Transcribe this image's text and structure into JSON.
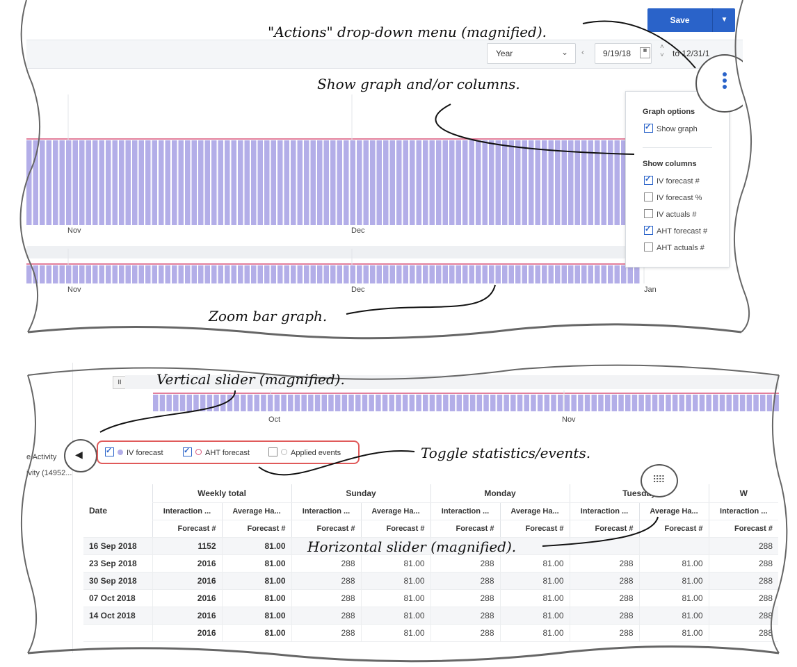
{
  "callouts": {
    "actions_menu": "\"Actions\" drop-down menu (magnified).",
    "show_graph_columns": "Show graph and/or columns.",
    "zoom_bar": "Zoom bar graph.",
    "vertical_slider": "Vertical slider (magnified).",
    "toggle_stats": "Toggle statistics/events.",
    "horizontal_slider": "Horizontal slider (magnified)."
  },
  "toolbar": {
    "save_label": "Save",
    "period_value": "Year",
    "start_date": "9/19/18",
    "to_label": "to 12/31/1"
  },
  "chart": {
    "bar_color": "#b3aee8",
    "line_color": "#d9547a",
    "month_labels": [
      "Nov",
      "Dec"
    ],
    "zoom_month_labels": [
      "Nov",
      "Dec",
      "Jan"
    ]
  },
  "graph_menu": {
    "graph_options_header": "Graph options",
    "show_graph_label": "Show graph",
    "show_graph_checked": true,
    "show_columns_header": "Show columns",
    "columns": [
      {
        "label": "IV forecast #",
        "checked": true
      },
      {
        "label": "IV forecast %",
        "checked": false
      },
      {
        "label": "IV actuals #",
        "checked": false
      },
      {
        "label": "AHT forecast #",
        "checked": true
      },
      {
        "label": "AHT actuals #",
        "checked": false
      }
    ]
  },
  "sidebar": {
    "line1": "e Activity",
    "line2": "ivity (14952..."
  },
  "mini_chart": {
    "month_labels": [
      "Oct",
      "Nov"
    ]
  },
  "toggles": {
    "iv_forecast": "IV forecast",
    "aht_forecast": "AHT forecast",
    "applied_events": "Applied events"
  },
  "table": {
    "date_header": "Date",
    "groups": [
      "Weekly total",
      "Sunday",
      "Monday",
      "Tuesday",
      "W"
    ],
    "sub_headers": [
      "Interaction ...",
      "Average Ha...",
      "Interaction ...",
      "Average Ha...",
      "Interaction ...",
      "Average Ha...",
      "Interaction ...",
      "Average Ha...",
      "Interaction ..."
    ],
    "unit_headers": [
      "Forecast #",
      "Forecast #",
      "Forecast #",
      "Forecast #",
      "Forecast #",
      "Forecast #",
      "Forecast #",
      "Forecast #",
      "Forecast #"
    ],
    "rows": [
      {
        "date": "16 Sep 2018",
        "cells": [
          "1152",
          "81.00",
          "",
          "",
          "",
          "",
          "",
          "",
          "288"
        ]
      },
      {
        "date": "23 Sep 2018",
        "cells": [
          "2016",
          "81.00",
          "288",
          "81.00",
          "288",
          "81.00",
          "288",
          "81.00",
          "288"
        ]
      },
      {
        "date": "30 Sep 2018",
        "cells": [
          "2016",
          "81.00",
          "288",
          "81.00",
          "288",
          "81.00",
          "288",
          "81.00",
          "288"
        ]
      },
      {
        "date": "07 Oct 2018",
        "cells": [
          "2016",
          "81.00",
          "288",
          "81.00",
          "288",
          "81.00",
          "288",
          "81.00",
          "288"
        ]
      },
      {
        "date": "14 Oct 2018",
        "cells": [
          "2016",
          "81.00",
          "288",
          "81.00",
          "288",
          "81.00",
          "288",
          "81.00",
          "288"
        ]
      },
      {
        "date": "",
        "cells": [
          "2016",
          "81.00",
          "288",
          "81.00",
          "288",
          "81.00",
          "288",
          "81.00",
          "288"
        ]
      }
    ]
  }
}
